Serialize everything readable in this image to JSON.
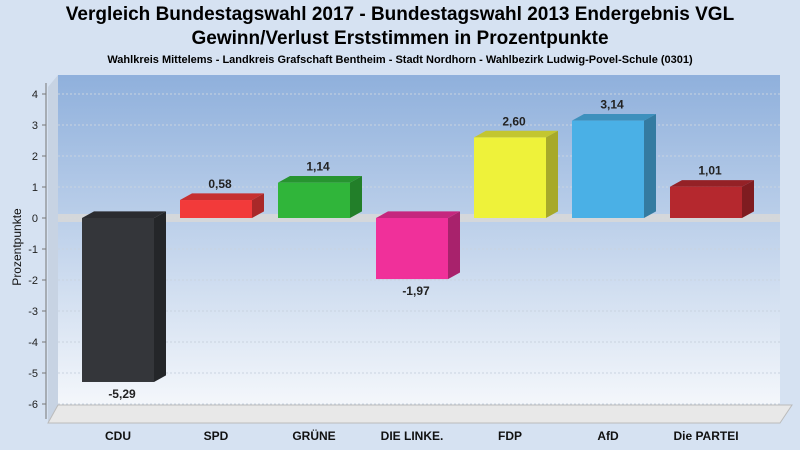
{
  "title": "Vergleich Bundestagswahl 2017 - Bundestagswahl 2013 Endergebnis VGL",
  "subtitle": "Gewinn/Verlust Erststimmen in Prozentpunkte",
  "caption": "Wahlkreis Mittelems - Landkreis Grafschaft Bentheim - Stadt Nordhorn - Wahlbezirk Ludwig-Povel-Schule (0301)",
  "chart_data": {
    "type": "bar",
    "title": "Vergleich Bundestagswahl 2017 - Bundestagswahl 2013 Endergebnis VGL",
    "subtitle": "Gewinn/Verlust Erststimmen in Prozentpunkte",
    "xlabel": "",
    "ylabel": "Prozentpunkte",
    "ylim": [
      -6,
      4
    ],
    "yticks": [
      4,
      3,
      2,
      1,
      0,
      -1,
      -2,
      -3,
      -4,
      -5,
      -6
    ],
    "grid": true,
    "legend": "none",
    "categories": [
      "CDU",
      "SPD",
      "GRÜNE",
      "DIE LINKE.",
      "FDP",
      "AfD",
      "Die PARTEI"
    ],
    "values": [
      -5.29,
      0.58,
      1.14,
      -1.97,
      2.6,
      3.14,
      1.01
    ],
    "value_labels": [
      "-5,29",
      "0,58",
      "1,14",
      "-1,97",
      "2,60",
      "3,14",
      "1,01"
    ],
    "colors": [
      "#34363a",
      "#f23a3a",
      "#30b53a",
      "#f0309a",
      "#eef23a",
      "#4ab0e6",
      "#b5282e"
    ]
  }
}
